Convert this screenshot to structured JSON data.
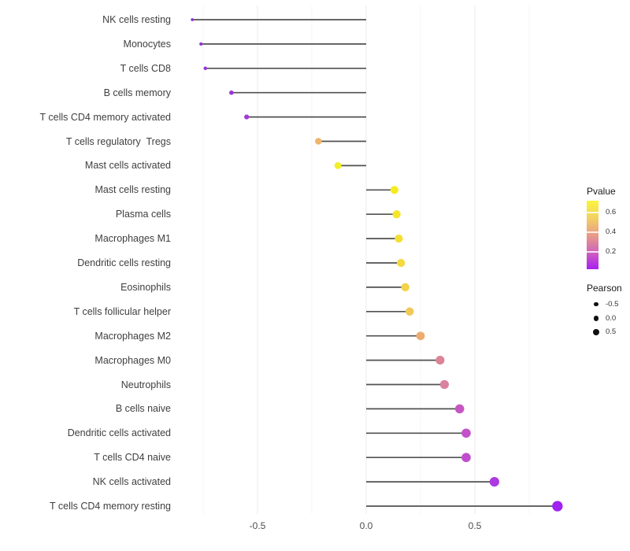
{
  "figure": {
    "background": "#FFFFFF",
    "axis_text_color": "#4D4D4D",
    "segment_color": "#515151",
    "grid_major_color": "#EBEBEB",
    "grid_minor_color": "#F4F4F4"
  },
  "chart_data": {
    "type": "scatter",
    "subtype": "lollipop",
    "orientation": "horizontal",
    "title": "",
    "xlabel": "",
    "ylabel": "",
    "x_tick_labels": [
      "-0.5",
      "0.0",
      "0.5"
    ],
    "x_tick_values": [
      -0.5,
      0.0,
      0.5
    ],
    "x_minor_tick_values": [
      -0.75,
      -0.25,
      0.25,
      0.75
    ],
    "xlim": [
      -0.88,
      0.96
    ],
    "baseline": 0,
    "grid": true,
    "legend_position": "right",
    "points": [
      {
        "label": "NK cells resting",
        "pearson": -0.8,
        "color": "#9231DB"
      },
      {
        "label": "Monocytes",
        "pearson": -0.76,
        "color": "#9331D9"
      },
      {
        "label": "T cells CD8",
        "pearson": -0.74,
        "color": "#9532D7"
      },
      {
        "label": "B cells memory",
        "pearson": -0.62,
        "color": "#9C37D3"
      },
      {
        "label": "T cells CD4 memory activated",
        "pearson": -0.55,
        "color": "#A23BD0"
      },
      {
        "label": "T cells regulatory  Tregs",
        "pearson": -0.22,
        "color": "#EFB46C"
      },
      {
        "label": "Mast cells activated",
        "pearson": -0.13,
        "color": "#F3EE25"
      },
      {
        "label": "Mast cells resting",
        "pearson": 0.13,
        "color": "#F6EB1D"
      },
      {
        "label": "Plasma cells",
        "pearson": 0.14,
        "color": "#F5E52A"
      },
      {
        "label": "Macrophages M1",
        "pearson": 0.15,
        "color": "#F4DF35"
      },
      {
        "label": "Dendritic cells resting",
        "pearson": 0.16,
        "color": "#F3DA40"
      },
      {
        "label": "Eosinophils",
        "pearson": 0.18,
        "color": "#F2D44B"
      },
      {
        "label": "T cells follicular helper",
        "pearson": 0.2,
        "color": "#F0C95B"
      },
      {
        "label": "Macrophages M2",
        "pearson": 0.25,
        "color": "#ECAC6E"
      },
      {
        "label": "Macrophages M0",
        "pearson": 0.34,
        "color": "#DB8497"
      },
      {
        "label": "Neutrophils",
        "pearson": 0.36,
        "color": "#D981A0"
      },
      {
        "label": "B cells naive",
        "pearson": 0.43,
        "color": "#C756C2"
      },
      {
        "label": "Dendritic cells activated",
        "pearson": 0.46,
        "color": "#C351C9"
      },
      {
        "label": "T cells CD4 naive",
        "pearson": 0.46,
        "color": "#C04DCE"
      },
      {
        "label": "NK cells activated",
        "pearson": 0.59,
        "color": "#AC39E2"
      },
      {
        "label": "T cells CD4 memory resting",
        "pearson": 0.88,
        "color": "#A122F0"
      }
    ],
    "legend": {
      "pvalue": {
        "title": "Pvalue",
        "tick_labels": [
          "0.6",
          "0.4",
          "0.2"
        ],
        "gradient_top_to_bottom": [
          "#FBF53C",
          "#F3D163",
          "#E89C87",
          "#CF63BC",
          "#A81EF2"
        ]
      },
      "pearson": {
        "title": "Pearson",
        "size_labels": [
          "-0.5",
          "0.0",
          "0.5"
        ]
      }
    }
  }
}
